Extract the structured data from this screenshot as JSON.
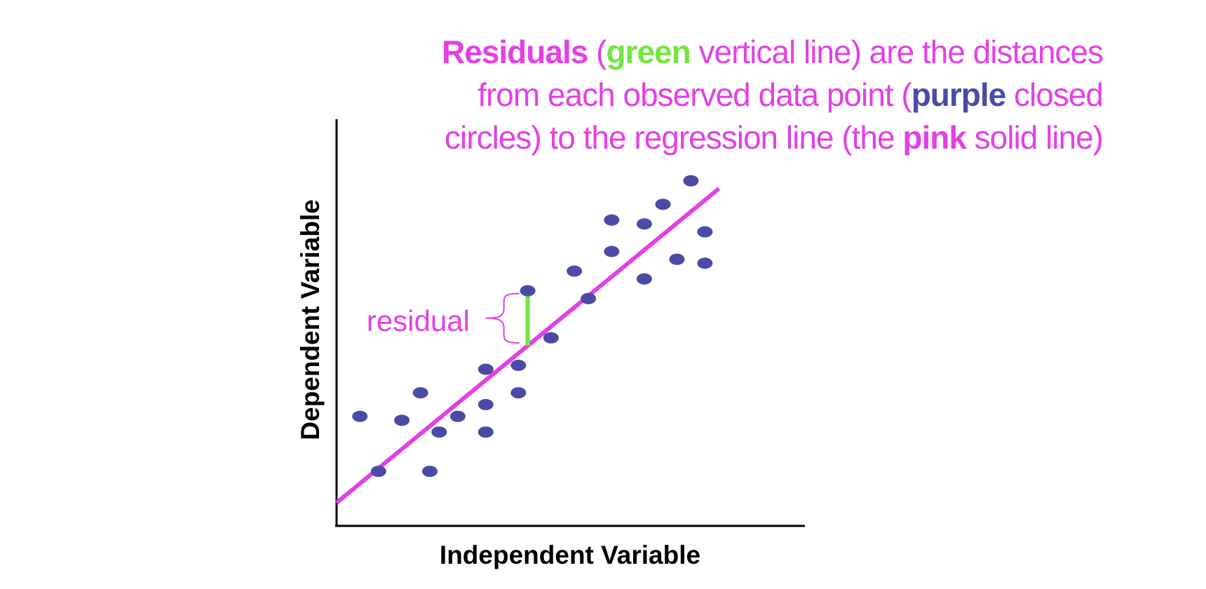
{
  "caption": {
    "line1": {
      "w1": "Residuals",
      "w2": " (",
      "w3": "green",
      "w4": " vertical line) are the distances"
    },
    "line2": {
      "w1": "from each observed data point (",
      "w2": "purple",
      "w3": " closed"
    },
    "line3": {
      "w1": "circles) to the regression line (the ",
      "w2": "pink",
      "w3": " solid line)"
    }
  },
  "colors": {
    "accent": "#e340e6",
    "residual": "#74e640",
    "points": "#4b4ba5",
    "axis": "#000000"
  },
  "chart_data": {
    "type": "scatter",
    "xlabel": "Independent Variable",
    "ylabel": "Dependent Variable",
    "xlim": [
      0,
      10
    ],
    "ylim": [
      0,
      10
    ],
    "grid": false,
    "points": [
      {
        "x": 0.5,
        "y": 2.7
      },
      {
        "x": 0.9,
        "y": 1.3
      },
      {
        "x": 1.4,
        "y": 2.6
      },
      {
        "x": 1.8,
        "y": 3.3
      },
      {
        "x": 2.0,
        "y": 1.3
      },
      {
        "x": 2.2,
        "y": 2.3
      },
      {
        "x": 2.6,
        "y": 2.7
      },
      {
        "x": 3.2,
        "y": 3.0
      },
      {
        "x": 3.2,
        "y": 3.9
      },
      {
        "x": 3.2,
        "y": 2.3
      },
      {
        "x": 3.9,
        "y": 3.3
      },
      {
        "x": 3.9,
        "y": 4.0
      },
      {
        "x": 4.1,
        "y": 5.9
      },
      {
        "x": 4.6,
        "y": 4.7
      },
      {
        "x": 5.1,
        "y": 6.4
      },
      {
        "x": 5.4,
        "y": 5.7
      },
      {
        "x": 5.9,
        "y": 6.9
      },
      {
        "x": 5.9,
        "y": 7.7
      },
      {
        "x": 6.6,
        "y": 6.2
      },
      {
        "x": 6.6,
        "y": 7.6
      },
      {
        "x": 7.0,
        "y": 8.1
      },
      {
        "x": 7.3,
        "y": 6.7
      },
      {
        "x": 7.6,
        "y": 8.7
      },
      {
        "x": 7.9,
        "y": 7.4
      },
      {
        "x": 7.9,
        "y": 6.6
      }
    ],
    "regression_line": {
      "x": [
        0,
        8.2
      ],
      "y": [
        0.5,
        8.5
      ]
    },
    "residual": {
      "x": 4.1,
      "y_observed": 5.9,
      "y_fitted": 4.5
    },
    "annotations": [
      "residual"
    ]
  }
}
